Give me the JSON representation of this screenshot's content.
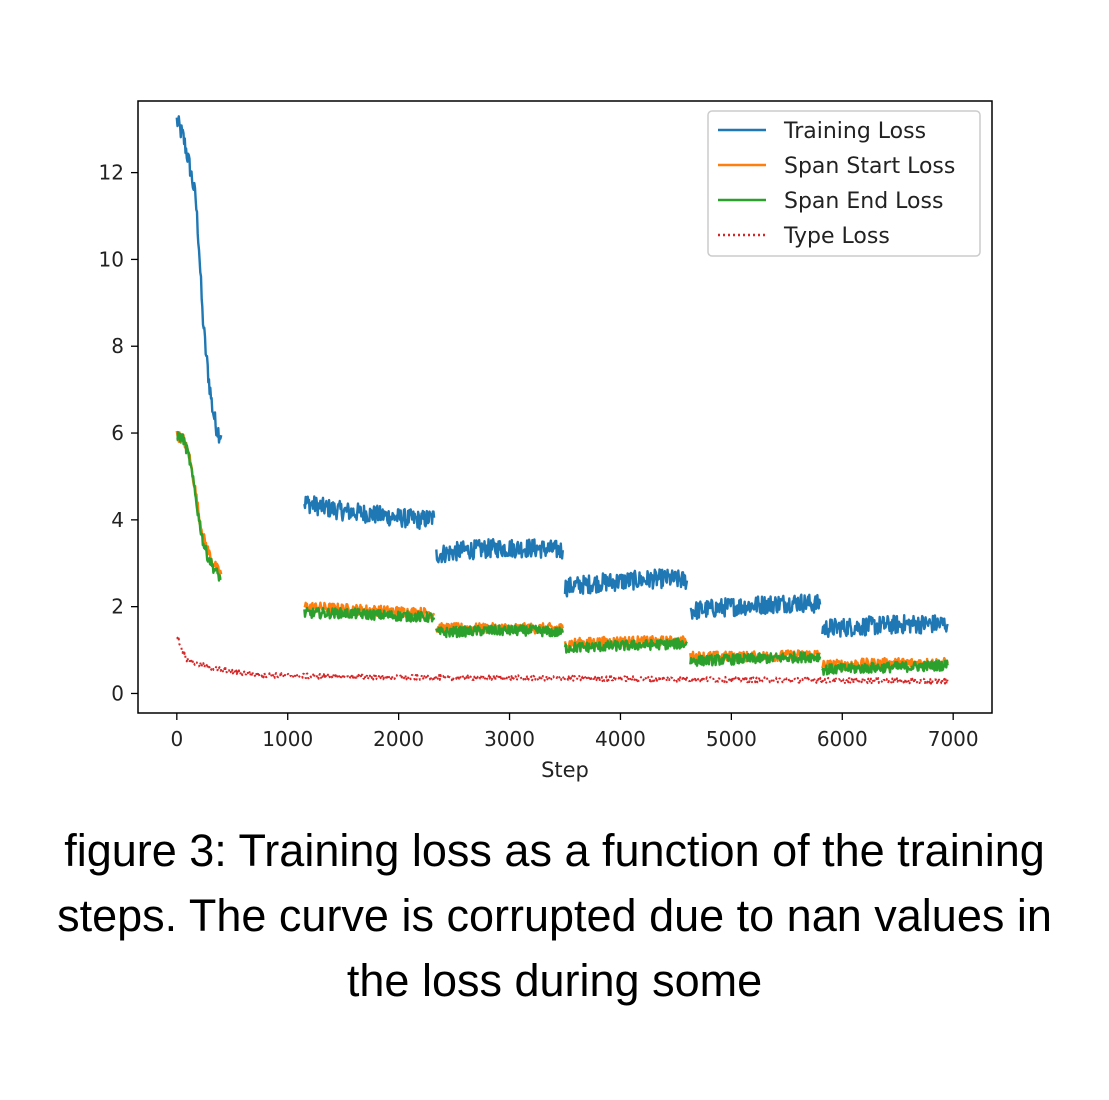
{
  "caption": "figure 3: Training loss as a function of the training steps. The curve is corrupted due to nan values in the loss during some",
  "chart_data": {
    "type": "line",
    "xlabel": "Step",
    "ylabel": "",
    "xlim": [
      -350,
      7350
    ],
    "ylim": [
      -0.45,
      13.65
    ],
    "xticks": [
      0,
      1000,
      2000,
      3000,
      4000,
      5000,
      6000,
      7000
    ],
    "yticks": [
      0,
      2,
      4,
      6,
      8,
      10,
      12
    ],
    "grid": false,
    "legend_position": "top-right",
    "series": [
      {
        "name": "Training Loss",
        "color": "#1f77b4",
        "style": "solid",
        "segments": [
          [
            [
              0,
              13.2
            ],
            [
              60,
              12.8
            ],
            [
              120,
              12.1
            ],
            [
              170,
              11.4
            ],
            [
              200,
              10.3
            ],
            [
              230,
              8.8
            ],
            [
              260,
              7.9
            ],
            [
              290,
              7.2
            ],
            [
              320,
              6.6
            ],
            [
              350,
              6.2
            ],
            [
              380,
              6.0
            ],
            [
              400,
              5.95
            ]
          ],
          [
            [
              1150,
              4.4
            ],
            [
              1300,
              4.3
            ],
            [
              1500,
              4.2
            ],
            [
              1700,
              4.15
            ],
            [
              1850,
              4.1
            ],
            [
              2000,
              4.05
            ],
            [
              2200,
              4.0
            ],
            [
              2320,
              4.05
            ]
          ],
          [
            [
              2340,
              3.2
            ],
            [
              2600,
              3.3
            ],
            [
              2900,
              3.35
            ],
            [
              3200,
              3.35
            ],
            [
              3480,
              3.3
            ]
          ],
          [
            [
              3500,
              2.45
            ],
            [
              3800,
              2.55
            ],
            [
              4100,
              2.6
            ],
            [
              4400,
              2.65
            ],
            [
              4600,
              2.6
            ]
          ],
          [
            [
              4630,
              1.9
            ],
            [
              5000,
              2.0
            ],
            [
              5300,
              2.05
            ],
            [
              5600,
              2.1
            ],
            [
              5800,
              2.05
            ]
          ],
          [
            [
              5820,
              1.5
            ],
            [
              6200,
              1.55
            ],
            [
              6600,
              1.6
            ],
            [
              6950,
              1.6
            ]
          ]
        ]
      },
      {
        "name": "Span Start Loss",
        "color": "#ff7f0e",
        "style": "solid",
        "segments": [
          [
            [
              0,
              5.95
            ],
            [
              60,
              5.85
            ],
            [
              110,
              5.5
            ],
            [
              160,
              4.8
            ],
            [
              200,
              4.1
            ],
            [
              240,
              3.6
            ],
            [
              280,
              3.3
            ],
            [
              330,
              3.0
            ],
            [
              380,
              2.8
            ],
            [
              400,
              2.75
            ]
          ],
          [
            [
              1150,
              2.0
            ],
            [
              1500,
              1.95
            ],
            [
              1900,
              1.9
            ],
            [
              2320,
              1.85
            ]
          ],
          [
            [
              2340,
              1.5
            ],
            [
              2800,
              1.5
            ],
            [
              3200,
              1.5
            ],
            [
              3480,
              1.5
            ]
          ],
          [
            [
              3500,
              1.15
            ],
            [
              4000,
              1.2
            ],
            [
              4600,
              1.2
            ]
          ],
          [
            [
              4630,
              0.85
            ],
            [
              5200,
              0.85
            ],
            [
              5800,
              0.9
            ]
          ],
          [
            [
              5820,
              0.65
            ],
            [
              6400,
              0.7
            ],
            [
              6950,
              0.7
            ]
          ]
        ]
      },
      {
        "name": "Span End Loss",
        "color": "#2ca02c",
        "style": "solid",
        "segments": [
          [
            [
              0,
              5.95
            ],
            [
              60,
              5.85
            ],
            [
              110,
              5.45
            ],
            [
              160,
              4.7
            ],
            [
              200,
              4.0
            ],
            [
              240,
              3.45
            ],
            [
              280,
              3.15
            ],
            [
              330,
              2.9
            ],
            [
              380,
              2.7
            ],
            [
              400,
              2.65
            ]
          ],
          [
            [
              1150,
              1.85
            ],
            [
              1500,
              1.85
            ],
            [
              1900,
              1.8
            ],
            [
              2320,
              1.75
            ]
          ],
          [
            [
              2340,
              1.4
            ],
            [
              2800,
              1.45
            ],
            [
              3200,
              1.45
            ],
            [
              3480,
              1.4
            ]
          ],
          [
            [
              3500,
              1.05
            ],
            [
              4000,
              1.1
            ],
            [
              4600,
              1.15
            ]
          ],
          [
            [
              4630,
              0.75
            ],
            [
              5200,
              0.8
            ],
            [
              5800,
              0.85
            ]
          ],
          [
            [
              5820,
              0.55
            ],
            [
              6400,
              0.6
            ],
            [
              6950,
              0.65
            ]
          ]
        ]
      },
      {
        "name": "Type Loss",
        "color": "#d62728",
        "style": "dotted",
        "segments": [
          [
            [
              0,
              1.35
            ],
            [
              40,
              1.05
            ],
            [
              90,
              0.8
            ],
            [
              150,
              0.7
            ],
            [
              300,
              0.6
            ],
            [
              500,
              0.5
            ],
            [
              800,
              0.42
            ],
            [
              1200,
              0.4
            ],
            [
              2000,
              0.37
            ],
            [
              3000,
              0.36
            ],
            [
              4000,
              0.34
            ],
            [
              5000,
              0.32
            ],
            [
              6000,
              0.3
            ],
            [
              6950,
              0.28
            ]
          ]
        ]
      }
    ]
  }
}
